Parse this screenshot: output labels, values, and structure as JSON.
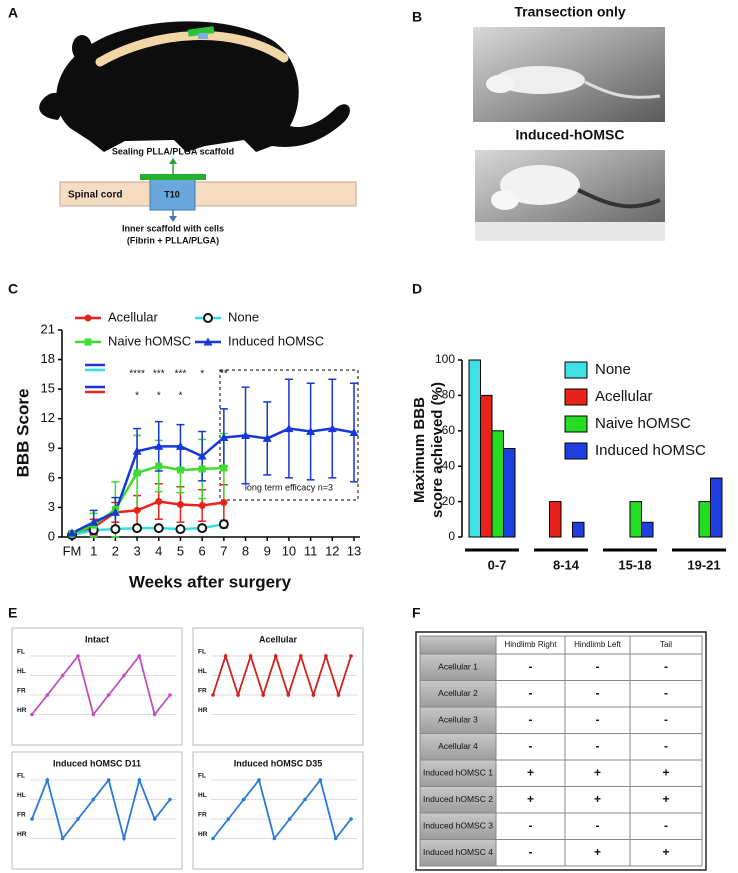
{
  "panel_a": {
    "letter": "A",
    "top_label": "Sealing PLLA/PLGA scaffold",
    "cord_label": "Spinal cord",
    "segment": "T10",
    "bottom_label": [
      "Inner scaffold with cells",
      "(Fibrin + PLLA/PLGA)"
    ]
  },
  "panel_b": {
    "letter": "B",
    "photos": [
      {
        "caption": "Transection only"
      },
      {
        "caption": "Induced-hOMSC"
      }
    ]
  },
  "chart_data": [
    {
      "panel": "C",
      "type": "line",
      "categories": [
        "FM",
        "1",
        "2",
        "3",
        "4",
        "5",
        "6",
        "7",
        "8",
        "9",
        "10",
        "11",
        "12",
        "13"
      ],
      "xlabel": "Weeks after surgery",
      "ylabel": "BBB Score",
      "ylim": [
        0,
        21
      ],
      "yticks": [
        0,
        3,
        6,
        9,
        12,
        15,
        18,
        21
      ],
      "series": [
        {
          "name": "Acellular",
          "color": "#e8231b",
          "marker": "circle",
          "values": [
            0.3,
            1.0,
            2.5,
            2.7,
            3.6,
            3.3,
            3.2,
            3.5,
            null,
            null,
            null,
            null,
            null,
            null
          ],
          "errors": [
            0.2,
            0.8,
            1.0,
            1.5,
            1.8,
            1.8,
            1.6,
            1.8,
            null,
            null,
            null,
            null,
            null,
            null
          ]
        },
        {
          "name": "None",
          "color": "#35dde8",
          "marker": "open-circle",
          "values": [
            0.2,
            0.7,
            0.8,
            0.9,
            0.9,
            0.8,
            0.9,
            1.3,
            null,
            null,
            null,
            null,
            null,
            null
          ],
          "errors": [
            0.1,
            0.3,
            0.3,
            0.3,
            0.3,
            0.3,
            0.3,
            0.4,
            null,
            null,
            null,
            null,
            null,
            null
          ]
        },
        {
          "name": "Naive hOMSC",
          "color": "#3ddc2f",
          "marker": "square",
          "values": [
            0.3,
            1.2,
            2.8,
            6.5,
            7.2,
            6.8,
            6.9,
            7.0,
            null,
            null,
            null,
            null,
            null,
            null
          ],
          "errors": [
            0.2,
            1.2,
            2.8,
            3.8,
            2.6,
            2.3,
            3.0,
            3.5,
            null,
            null,
            null,
            null,
            null,
            null
          ]
        },
        {
          "name": "Induced hOMSC",
          "color": "#1737d8",
          "marker": "triangle",
          "values": [
            0.4,
            1.5,
            2.5,
            8.7,
            9.2,
            9.2,
            8.2,
            10.1,
            10.3,
            10.0,
            11.0,
            10.7,
            11.0,
            10.6
          ],
          "errors": [
            0.2,
            1.2,
            1.5,
            2.3,
            2.5,
            2.2,
            2.5,
            2.9,
            4.9,
            3.7,
            5.0,
            4.9,
            5.0,
            5.0
          ]
        }
      ],
      "significance": [
        {
          "colors": [
            "#1737d8",
            "#35dde8"
          ],
          "labels": [
            null,
            null,
            null,
            "****",
            "***",
            "***",
            "*",
            "**",
            null,
            null,
            null,
            null,
            null,
            null
          ]
        },
        {
          "colors": [
            "#1737d8",
            "#e8231b"
          ],
          "labels": [
            null,
            null,
            null,
            "*",
            "*",
            "*",
            null,
            null,
            null,
            null,
            null,
            null,
            null,
            null
          ]
        }
      ],
      "annotation": "long term efficacy n=3"
    },
    {
      "panel": "D",
      "type": "bar",
      "categories": [
        "0-7",
        "8-14",
        "15-18",
        "19-21"
      ],
      "ylabel": [
        "Maximum BBB",
        "score achieved (%)"
      ],
      "ylim": [
        0,
        100
      ],
      "yticks": [
        0,
        20,
        40,
        60,
        80,
        100
      ],
      "series": [
        {
          "name": "None",
          "color": "#3ee0e6",
          "values": [
            100,
            0,
            0,
            0
          ]
        },
        {
          "name": "Acellular",
          "color": "#e8231b",
          "values": [
            80,
            20,
            0,
            0
          ]
        },
        {
          "name": "Naive hOMSC",
          "color": "#22dd22",
          "values": [
            60,
            0,
            20,
            20
          ]
        },
        {
          "name": "Induced hOMSC",
          "color": "#1f3fe0",
          "values": [
            50,
            8.3,
            8.3,
            33.3
          ]
        }
      ]
    }
  ],
  "panel_e": {
    "letter": "E",
    "levels": [
      "FL",
      "HL",
      "FR",
      "HR"
    ],
    "plots": [
      {
        "title": "Intact",
        "color": "#c050c0",
        "values": [
          "HR",
          "FR",
          "HL",
          "FL",
          "HR",
          "FR",
          "HL",
          "FL",
          "HR",
          "FR"
        ]
      },
      {
        "title": "Acellular",
        "color": "#d42020",
        "values": [
          "FR",
          "FL",
          "FR",
          "FL",
          "FR",
          "FL",
          "FR",
          "FL",
          "FR",
          "FL",
          "FR",
          "FL"
        ]
      },
      {
        "title": "Induced hOMSC D11",
        "color": "#2a7ad8",
        "values": [
          "FR",
          "FL",
          "HR",
          "FR",
          "HL",
          "FL",
          "HR",
          "FL",
          "FR",
          "HL"
        ]
      },
      {
        "title": "Induced hOMSC D35",
        "color": "#2a7ad8",
        "values": [
          "HR",
          "FR",
          "HL",
          "FL",
          "HR",
          "FR",
          "HL",
          "FL",
          "HR",
          "FR"
        ]
      }
    ]
  },
  "panel_f": {
    "letter": "F",
    "columns": [
      "Hindlimb Right",
      "Hindlimb Left",
      "Tail"
    ],
    "rows": [
      {
        "label": "Acellular 1",
        "cells": [
          "-",
          "-",
          "-"
        ]
      },
      {
        "label": "Acellular 2",
        "cells": [
          "-",
          "-",
          "-"
        ]
      },
      {
        "label": "Acellular 3",
        "cells": [
          "-",
          "-",
          "-"
        ]
      },
      {
        "label": "Acellular 4",
        "cells": [
          "-",
          "-",
          "-"
        ]
      },
      {
        "label": "Induced hOMSC 1",
        "cells": [
          "+",
          "+",
          "+"
        ]
      },
      {
        "label": "Induced hOMSC 2",
        "cells": [
          "+",
          "+",
          "+"
        ]
      },
      {
        "label": "Induced hOMSC 3",
        "cells": [
          "-",
          "-",
          "-"
        ]
      },
      {
        "label": "Induced hOMSC 4",
        "cells": [
          "-",
          "+",
          "+"
        ]
      }
    ]
  }
}
